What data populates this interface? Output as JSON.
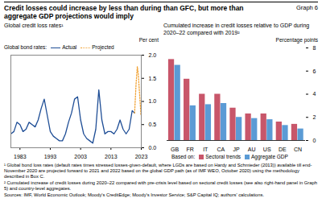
{
  "title": "Credit losses could increase by less than during than GFC, but more than aggregate GDP projections would imply",
  "graph_label": "Graph 6",
  "footnotes": [
    "¹ Global bond loss rates (default rates times stressed losses-given-default, where LGDs are based on Hardy and Schmieder (2013)) available till end-November 2020 are projected forward to 2021 and 2022 based on the global GDP path (as of IMF WEO, October 2020) using the methodology described in Box C.",
    "² Cumulated increase of credit losses during 2020–22 compared with pre-crisis level based on sectoral credit losses (see also right-hand panel in Graph 5) and country-level aggregates."
  ],
  "sources": "Sources: IMF, World Economic Outlook; Moody's CreditEdge; Moody's Investor Service; S&P Capital IQ; authors' calculations.",
  "chart_data": [
    {
      "type": "line",
      "title": "Global credit loss rates¹",
      "y_label": "Per cent",
      "legend_title": "Global bond rates:",
      "legend": "top-left",
      "grid": false,
      "xlim": [
        1980,
        2023
      ],
      "xticks": [
        1983,
        1993,
        2003,
        2013,
        2023
      ],
      "ylim": [
        0,
        2
      ],
      "yticks": [
        {
          "value": 0,
          "label": "0.0"
        },
        0.5,
        {
          "value": 1,
          "label": "1.0"
        },
        1.5,
        {
          "value": 2,
          "label": "2.0"
        }
      ],
      "series": [
        {
          "name": "Actual",
          "color": "#1f4e96",
          "line_style": "solid",
          "x": [
            1980,
            1981,
            1982,
            1983,
            1984,
            1985,
            1986,
            1987,
            1988,
            1989,
            1990,
            1991,
            1992,
            1993,
            1994,
            1995,
            1996,
            1997,
            1998,
            1999,
            2000,
            2001,
            2002,
            2003,
            2004,
            2005,
            2006,
            2007,
            2008,
            2009,
            2010,
            2011,
            2012,
            2013,
            2014,
            2015,
            2016,
            2017,
            2018,
            2019,
            2020,
            2020.8
          ],
          "values": [
            0.3,
            0.35,
            0.55,
            0.5,
            0.35,
            0.4,
            0.55,
            0.5,
            0.45,
            0.6,
            0.85,
            1.05,
            0.7,
            0.35,
            0.25,
            0.2,
            0.15,
            0.15,
            0.3,
            0.55,
            0.75,
            1.05,
            1.1,
            0.6,
            0.3,
            0.2,
            0.15,
            0.1,
            0.4,
            1.25,
            0.6,
            0.3,
            0.35,
            0.35,
            0.3,
            0.4,
            0.6,
            0.4,
            0.3,
            0.4,
            0.8,
            0.75
          ]
        },
        {
          "name": "Projected",
          "color": "#f0a030",
          "line_style": "dotted",
          "x": [
            2020.8,
            2021.3,
            2021.7,
            2022,
            2022.5,
            2022.9
          ],
          "values": [
            0.75,
            1.4,
            1.75,
            1.6,
            1.1,
            0.7
          ]
        }
      ]
    },
    {
      "type": "bar",
      "title": "Cumulated increase in credit losses relative to GDP during 2020–22 compared with 2019²",
      "y_label": "Percentage points",
      "legend_title": "Based on:",
      "legend": "bottom",
      "grid": false,
      "categories": [
        "GB",
        "FR",
        "IT",
        "CA",
        "JP",
        "AU",
        "US",
        "DE",
        "CN"
      ],
      "ylim": [
        0,
        8
      ],
      "yticks": [
        0,
        2,
        4,
        6,
        8
      ],
      "series": [
        {
          "name": "Sectoral trends",
          "color": "#c8566a",
          "values": [
            7.0,
            5.3,
            4.0,
            4.0,
            2.8,
            2.3,
            2.3,
            1.6,
            1.4
          ]
        },
        {
          "name": "Aggregate GDP",
          "color": "#5b9bd5",
          "values": [
            6.5,
            3.0,
            3.1,
            3.2,
            2.0,
            1.9,
            1.8,
            1.3,
            1.0
          ]
        }
      ]
    }
  ]
}
